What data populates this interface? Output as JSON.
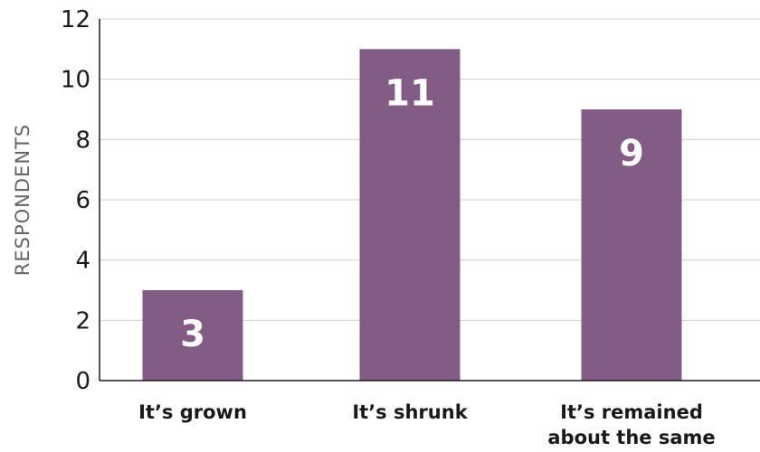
{
  "chart_data": {
    "type": "bar",
    "categories": [
      [
        "It’s grown"
      ],
      [
        "It’s shrunk"
      ],
      [
        "It’s remained",
        "about the same"
      ]
    ],
    "values": [
      3,
      11,
      9
    ],
    "data_labels": [
      "3",
      "11",
      "9"
    ],
    "ylabel": "RESPONDENTS",
    "xlabel": "",
    "ylim": [
      0,
      12
    ],
    "yticks": [
      0,
      2,
      4,
      6,
      8,
      10,
      12
    ],
    "grid": true,
    "bar_color": "#835C86",
    "legend": "none"
  }
}
